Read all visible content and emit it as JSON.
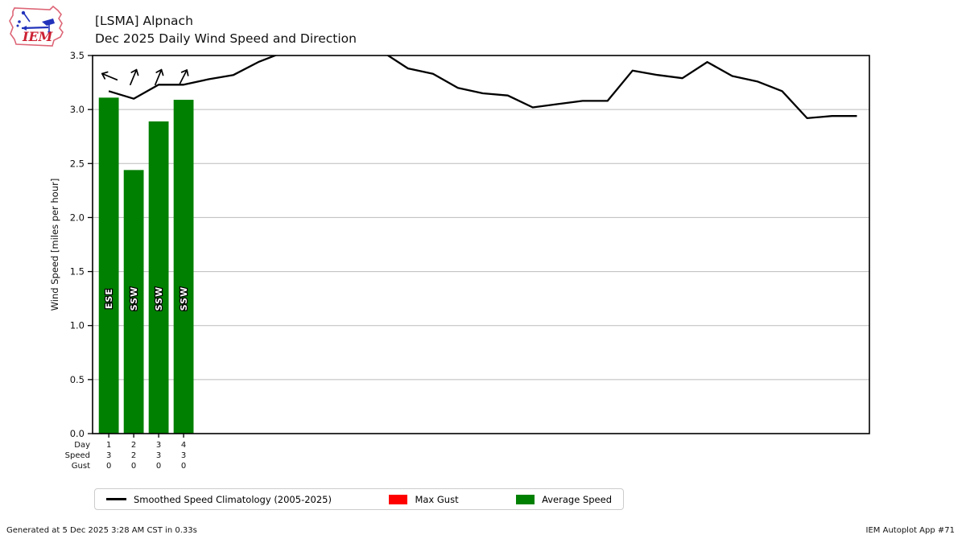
{
  "logo": {
    "text": "IEM"
  },
  "header": {
    "title": "[LSMA] Alpnach",
    "subtitle": "Dec 2025 Daily Wind Speed and Direction"
  },
  "chart_data": {
    "type": "composite",
    "title": "[LSMA] Alpnach",
    "subtitle": "Dec 2025 Daily Wind Speed and Direction",
    "ylabel": "Wind Speed [miles per hour]",
    "ylim": [
      0,
      3.5
    ],
    "yticks": [
      "0.0",
      "0.5",
      "1.0",
      "1.5",
      "2.0",
      "2.5",
      "3.0",
      "3.5"
    ],
    "xlim": [
      0.35,
      31.5
    ],
    "grid": "horizontal",
    "grid_color": "#bbbbbb",
    "bar_series": {
      "name": "Average Speed",
      "type": "bar",
      "color": "#008000",
      "days": [
        1,
        2,
        3,
        4
      ],
      "values": [
        3.11,
        2.44,
        2.89,
        3.09
      ],
      "directions": [
        "ESE",
        "SSW",
        "SSW",
        "SSW"
      ],
      "arrow_bearings_deg": [
        292.5,
        22.5,
        22.5,
        27
      ]
    },
    "line_series": {
      "name": "Smoothed Speed Climatology (2005-2025)",
      "type": "line",
      "color": "#000000",
      "x": [
        1,
        2,
        3,
        4,
        5,
        6,
        7,
        8,
        9,
        10,
        11,
        12,
        13,
        14,
        15,
        16,
        17,
        18,
        19,
        20,
        21,
        22,
        23,
        24,
        25,
        26,
        27,
        28,
        29,
        30,
        31
      ],
      "values": [
        3.17,
        3.1,
        3.23,
        3.23,
        3.28,
        3.32,
        3.44,
        3.53,
        3.56,
        3.57,
        3.56,
        3.53,
        3.38,
        3.33,
        3.2,
        3.15,
        3.13,
        3.02,
        3.05,
        3.08,
        3.08,
        3.36,
        3.32,
        3.29,
        3.44,
        3.31,
        3.26,
        3.17,
        2.92,
        2.94,
        2.94
      ],
      "note": "values above 3.5 are clipped at axis top"
    },
    "x_table": {
      "rows": [
        {
          "label": "Day",
          "values": [
            "1",
            "2",
            "3",
            "4"
          ]
        },
        {
          "label": "Speed",
          "values": [
            "3",
            "2",
            "3",
            "3"
          ]
        },
        {
          "label": "Gust",
          "values": [
            "0",
            "0",
            "0",
            "0"
          ]
        }
      ]
    }
  },
  "legend": {
    "items": [
      {
        "label": "Smoothed Speed Climatology (2005-2025)",
        "swatch": "line",
        "color": "#000000"
      },
      {
        "label": "Max Gust",
        "swatch": "rect",
        "color": "#ff0000"
      },
      {
        "label": "Average Speed",
        "swatch": "rect",
        "color": "#008000"
      }
    ]
  },
  "footer": {
    "left": "Generated at 5 Dec 2025 3:28 AM CST in 0.33s",
    "right": "IEM Autoplot App #71"
  }
}
